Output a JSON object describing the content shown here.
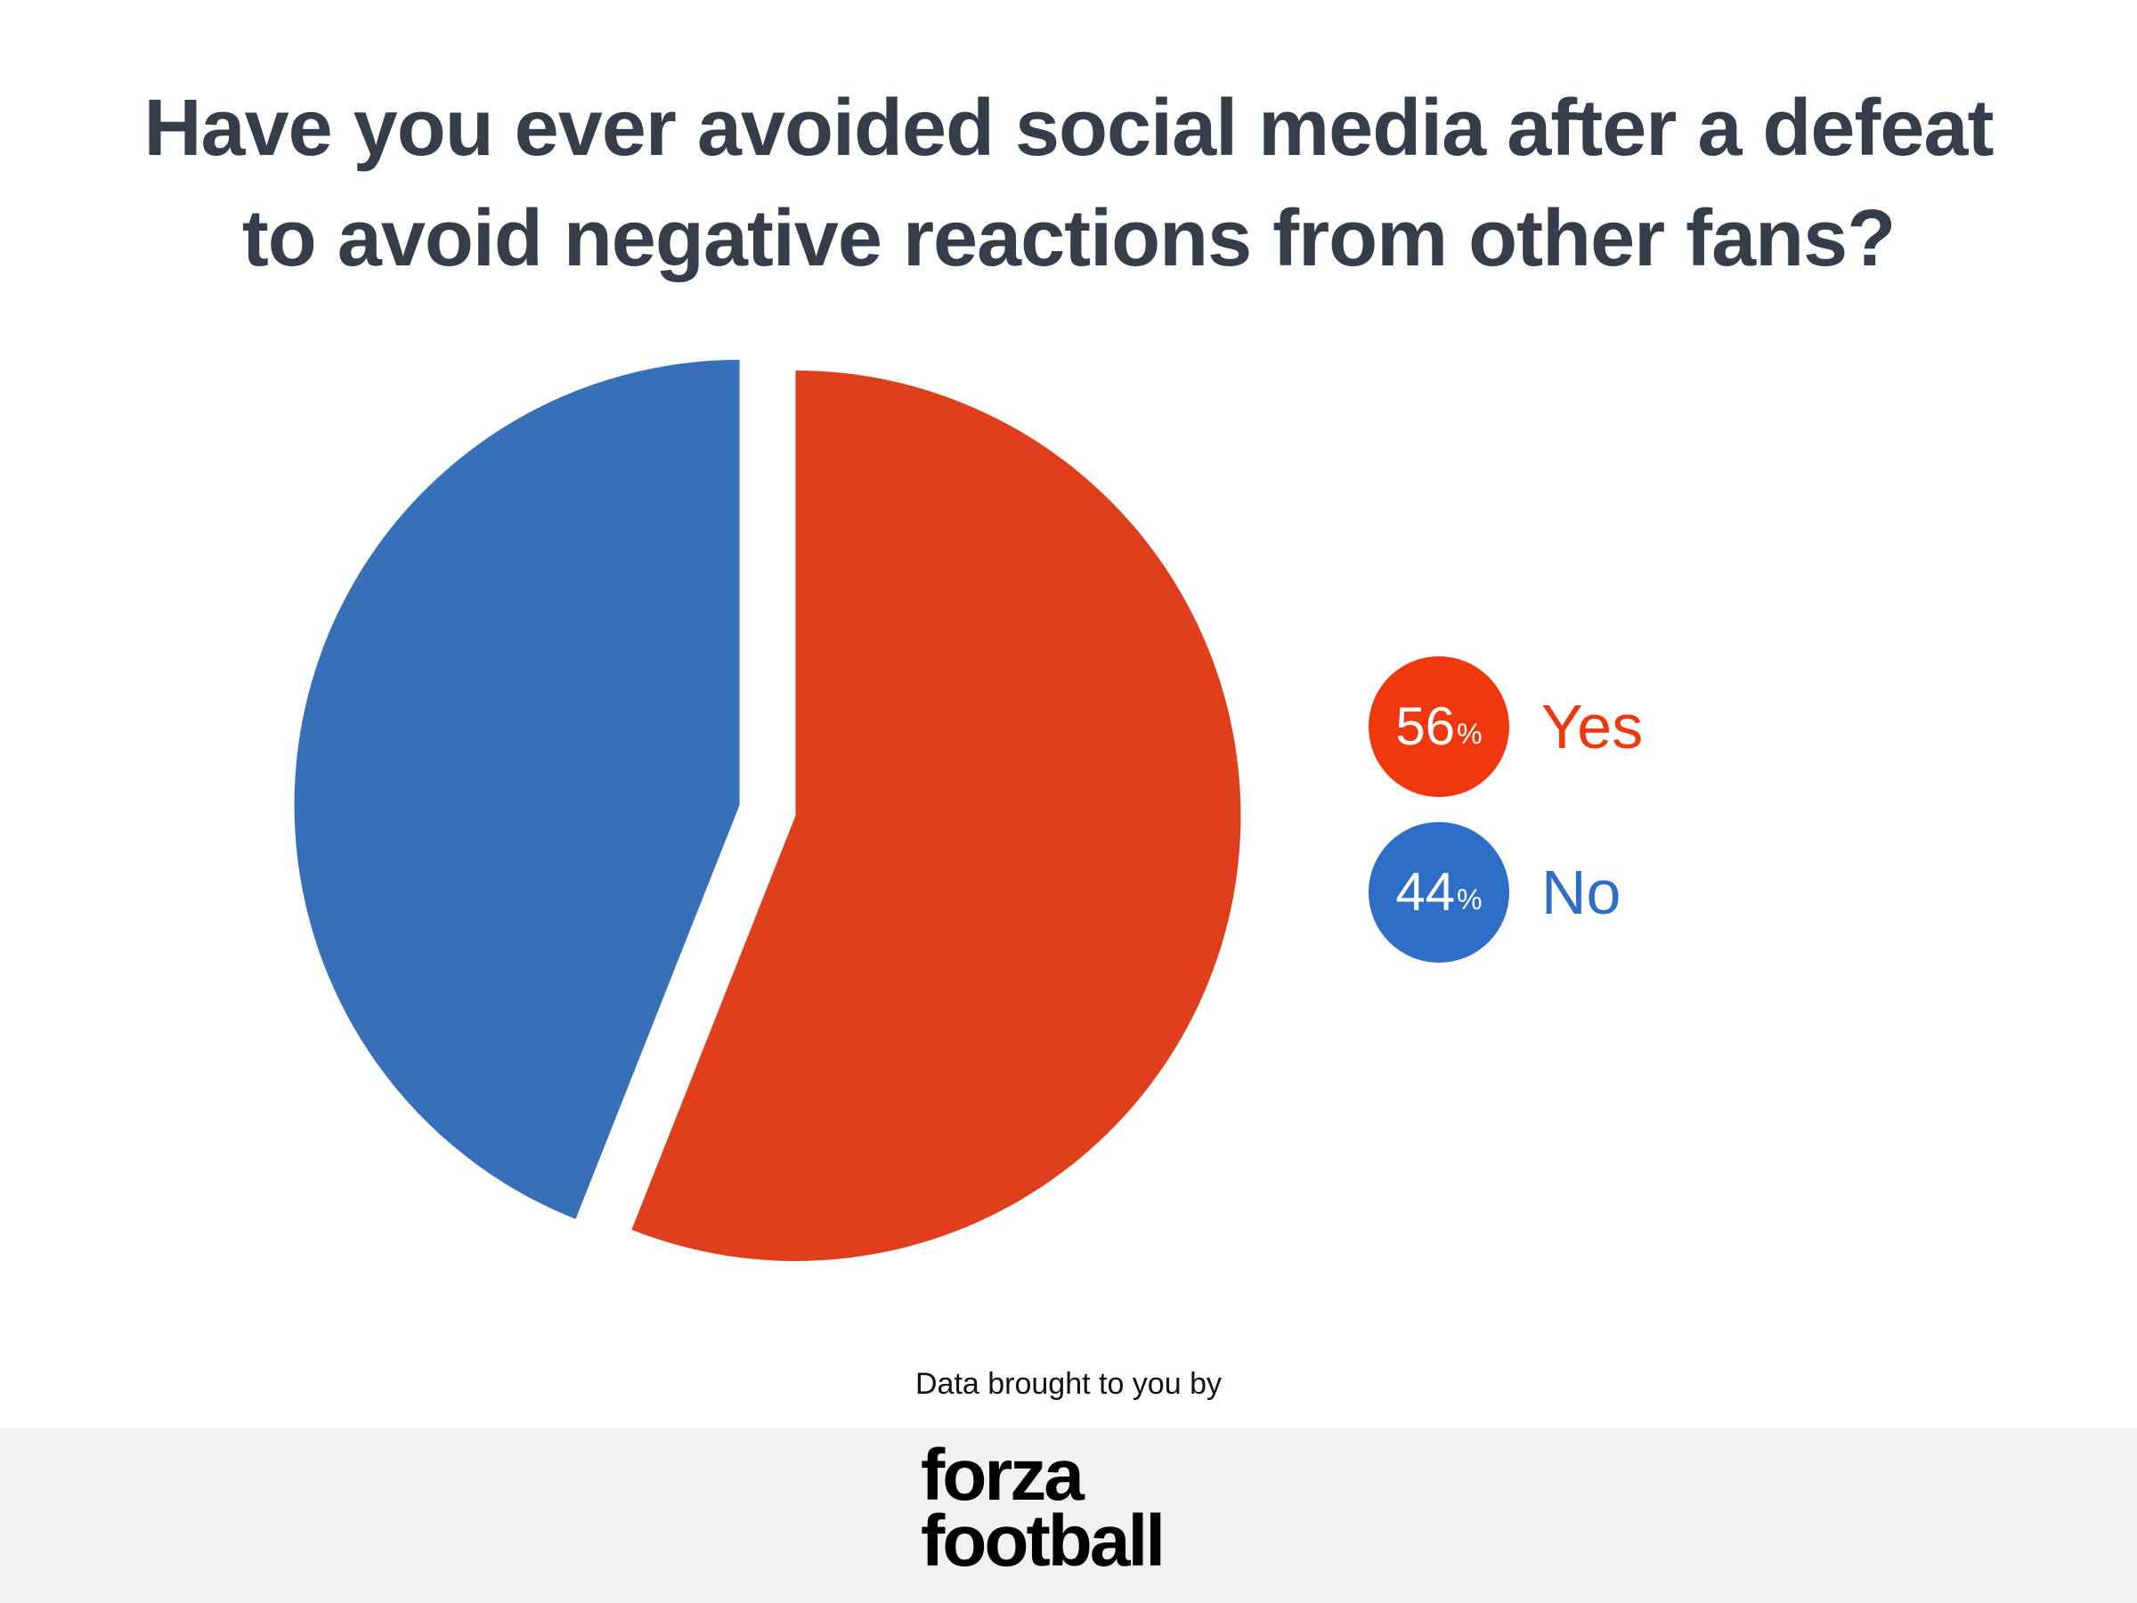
{
  "title": {
    "line1": "Have you ever avoided social media after a defeat",
    "line2": "to avoid negative reactions from other fans?"
  },
  "chart_data": {
    "type": "pie",
    "slices": [
      {
        "label": "Yes",
        "value": 56,
        "color": "#e03f1e"
      },
      {
        "label": "No",
        "value": 44,
        "color": "#376fb8"
      }
    ]
  },
  "legend": {
    "items": [
      {
        "value": "56",
        "suffix": "%",
        "label": "Yes",
        "circle_color": "#f0380f",
        "label_color": "#f0380f"
      },
      {
        "value": "44",
        "suffix": "%",
        "label": "No",
        "circle_color": "#2f6ec6",
        "label_color": "#2f6ec6"
      }
    ]
  },
  "footer": {
    "source_text": "Data brought to you by",
    "logo_line1": "forza",
    "logo_line2": "football"
  }
}
